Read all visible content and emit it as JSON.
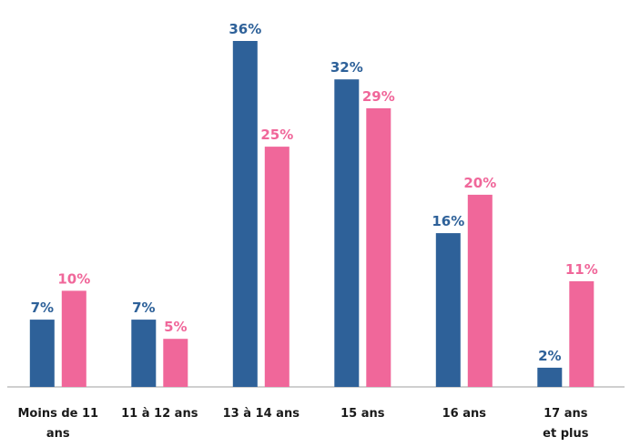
{
  "chart_data": {
    "type": "bar",
    "categories": [
      "Moins de 11\nans",
      "11 à 12 ans",
      "13 à 14 ans",
      "15 ans",
      "16 ans",
      "17 ans\net plus"
    ],
    "series": [
      {
        "values": [
          7,
          7,
          36,
          32,
          16,
          2
        ],
        "labels": [
          "7%",
          "7%",
          "36%",
          "32%",
          "16%",
          "2%"
        ],
        "color": "#2e6199"
      },
      {
        "values": [
          10,
          5,
          25,
          29,
          20,
          11
        ],
        "labels": [
          "10%",
          "5%",
          "25%",
          "29%",
          "20%",
          "11%"
        ],
        "color": "#f0679a"
      }
    ],
    "ylim": [
      0,
      36
    ],
    "grid": false,
    "legend": "none"
  }
}
